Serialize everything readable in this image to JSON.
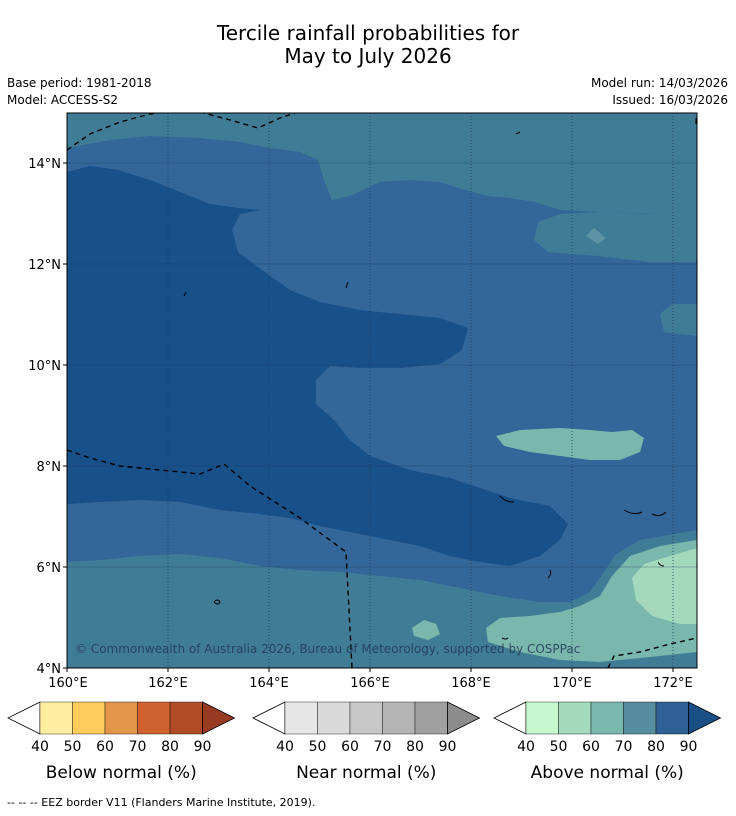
{
  "title_line1": "Tercile rainfall probabilities for",
  "title_line2": "May to July 2026",
  "base_period": "Base period: 1981-2018",
  "model": "Model: ACCESS-S2",
  "model_run": "Model run: 14/03/2026",
  "issued": "Issued: 16/03/2026",
  "copyright": "© Commonwealth of Australia 2026, Bureau of Meteorology, supported by COSPPac",
  "footer_note": "--  --  -- EEZ border V11 (Flanders Marine Institute, 2019).",
  "map": {
    "lon_labels": [
      "160°E",
      "162°E",
      "164°E",
      "166°E",
      "168°E",
      "170°E",
      "172°E"
    ],
    "lat_labels": [
      "14°N",
      "12°N",
      "10°N",
      "8°N",
      "6°N",
      "4°N"
    ],
    "lon_range": [
      160,
      172.5
    ],
    "lat_range": [
      4,
      15
    ]
  },
  "legends": [
    {
      "name": "Below normal (%)",
      "ticks": [
        "40",
        "50",
        "60",
        "70",
        "80",
        "90"
      ],
      "colors": [
        "#ffeda0",
        "#fecc5c",
        "#e3964a",
        "#d0622f",
        "#b14a27",
        "#983a22"
      ]
    },
    {
      "name": "Near normal (%)",
      "ticks": [
        "40",
        "50",
        "60",
        "70",
        "80",
        "90"
      ],
      "colors": [
        "#e6e6e6",
        "#d9d9d9",
        "#c7c7c7",
        "#b4b4b4",
        "#a0a0a0",
        "#8c8c8c"
      ]
    },
    {
      "name": "Above normal (%)",
      "ticks": [
        "40",
        "50",
        "60",
        "70",
        "80",
        "90"
      ],
      "colors": [
        "#c7f7cd",
        "#a3d9bd",
        "#7ab8ad",
        "#568e9f",
        "#2f6095",
        "#1a4f86"
      ]
    }
  ]
}
